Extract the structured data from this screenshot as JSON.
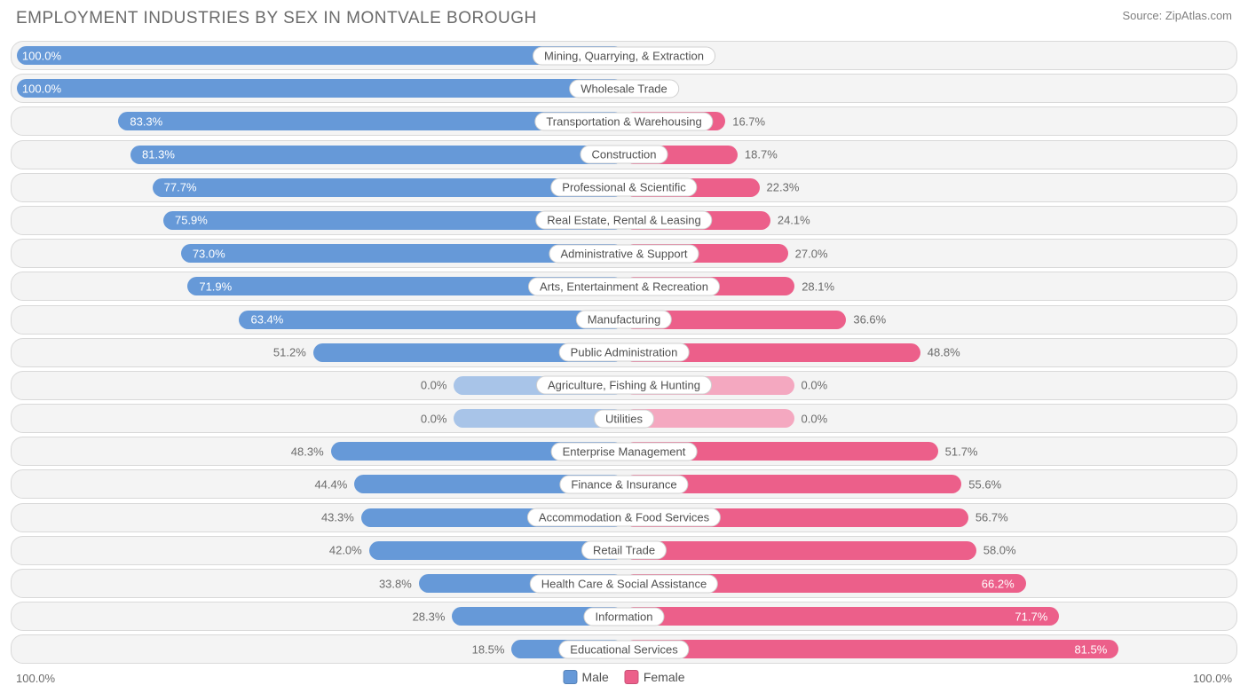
{
  "title": "EMPLOYMENT INDUSTRIES BY SEX IN MONTVALE BOROUGH",
  "source": "Source: ZipAtlas.com",
  "colors": {
    "male_bar": "#6699d8",
    "female_bar": "#ec5f8a",
    "male_placeholder": "#a8c4e8",
    "female_placeholder": "#f4a8c0",
    "row_bg": "#f4f4f4",
    "row_border": "#d9d9d9",
    "text": "#6b6b6b",
    "label_bg": "#ffffff"
  },
  "axis": {
    "left": "100.0%",
    "right": "100.0%"
  },
  "legend": [
    {
      "label": "Male",
      "color": "#6699d8"
    },
    {
      "label": "Female",
      "color": "#ec5f8a"
    }
  ],
  "placeholder_width_pct": 14,
  "rows": [
    {
      "label": "Mining, Quarrying, & Extraction",
      "male": 100.0,
      "female": 0.0,
      "no_data": false
    },
    {
      "label": "Wholesale Trade",
      "male": 100.0,
      "female": 0.0,
      "no_data": false
    },
    {
      "label": "Transportation & Warehousing",
      "male": 83.3,
      "female": 16.7,
      "no_data": false
    },
    {
      "label": "Construction",
      "male": 81.3,
      "female": 18.7,
      "no_data": false
    },
    {
      "label": "Professional & Scientific",
      "male": 77.7,
      "female": 22.3,
      "no_data": false
    },
    {
      "label": "Real Estate, Rental & Leasing",
      "male": 75.9,
      "female": 24.1,
      "no_data": false
    },
    {
      "label": "Administrative & Support",
      "male": 73.0,
      "female": 27.0,
      "no_data": false
    },
    {
      "label": "Arts, Entertainment & Recreation",
      "male": 71.9,
      "female": 28.1,
      "no_data": false
    },
    {
      "label": "Manufacturing",
      "male": 63.4,
      "female": 36.6,
      "no_data": false
    },
    {
      "label": "Public Administration",
      "male": 51.2,
      "female": 48.8,
      "no_data": false
    },
    {
      "label": "Agriculture, Fishing & Hunting",
      "male": 0.0,
      "female": 0.0,
      "no_data": true
    },
    {
      "label": "Utilities",
      "male": 0.0,
      "female": 0.0,
      "no_data": true
    },
    {
      "label": "Enterprise Management",
      "male": 48.3,
      "female": 51.7,
      "no_data": false
    },
    {
      "label": "Finance & Insurance",
      "male": 44.4,
      "female": 55.6,
      "no_data": false
    },
    {
      "label": "Accommodation & Food Services",
      "male": 43.3,
      "female": 56.7,
      "no_data": false
    },
    {
      "label": "Retail Trade",
      "male": 42.0,
      "female": 58.0,
      "no_data": false
    },
    {
      "label": "Health Care & Social Assistance",
      "male": 33.8,
      "female": 66.2,
      "no_data": false
    },
    {
      "label": "Information",
      "male": 28.3,
      "female": 71.7,
      "no_data": false
    },
    {
      "label": "Educational Services",
      "male": 18.5,
      "female": 81.5,
      "no_data": false
    }
  ]
}
